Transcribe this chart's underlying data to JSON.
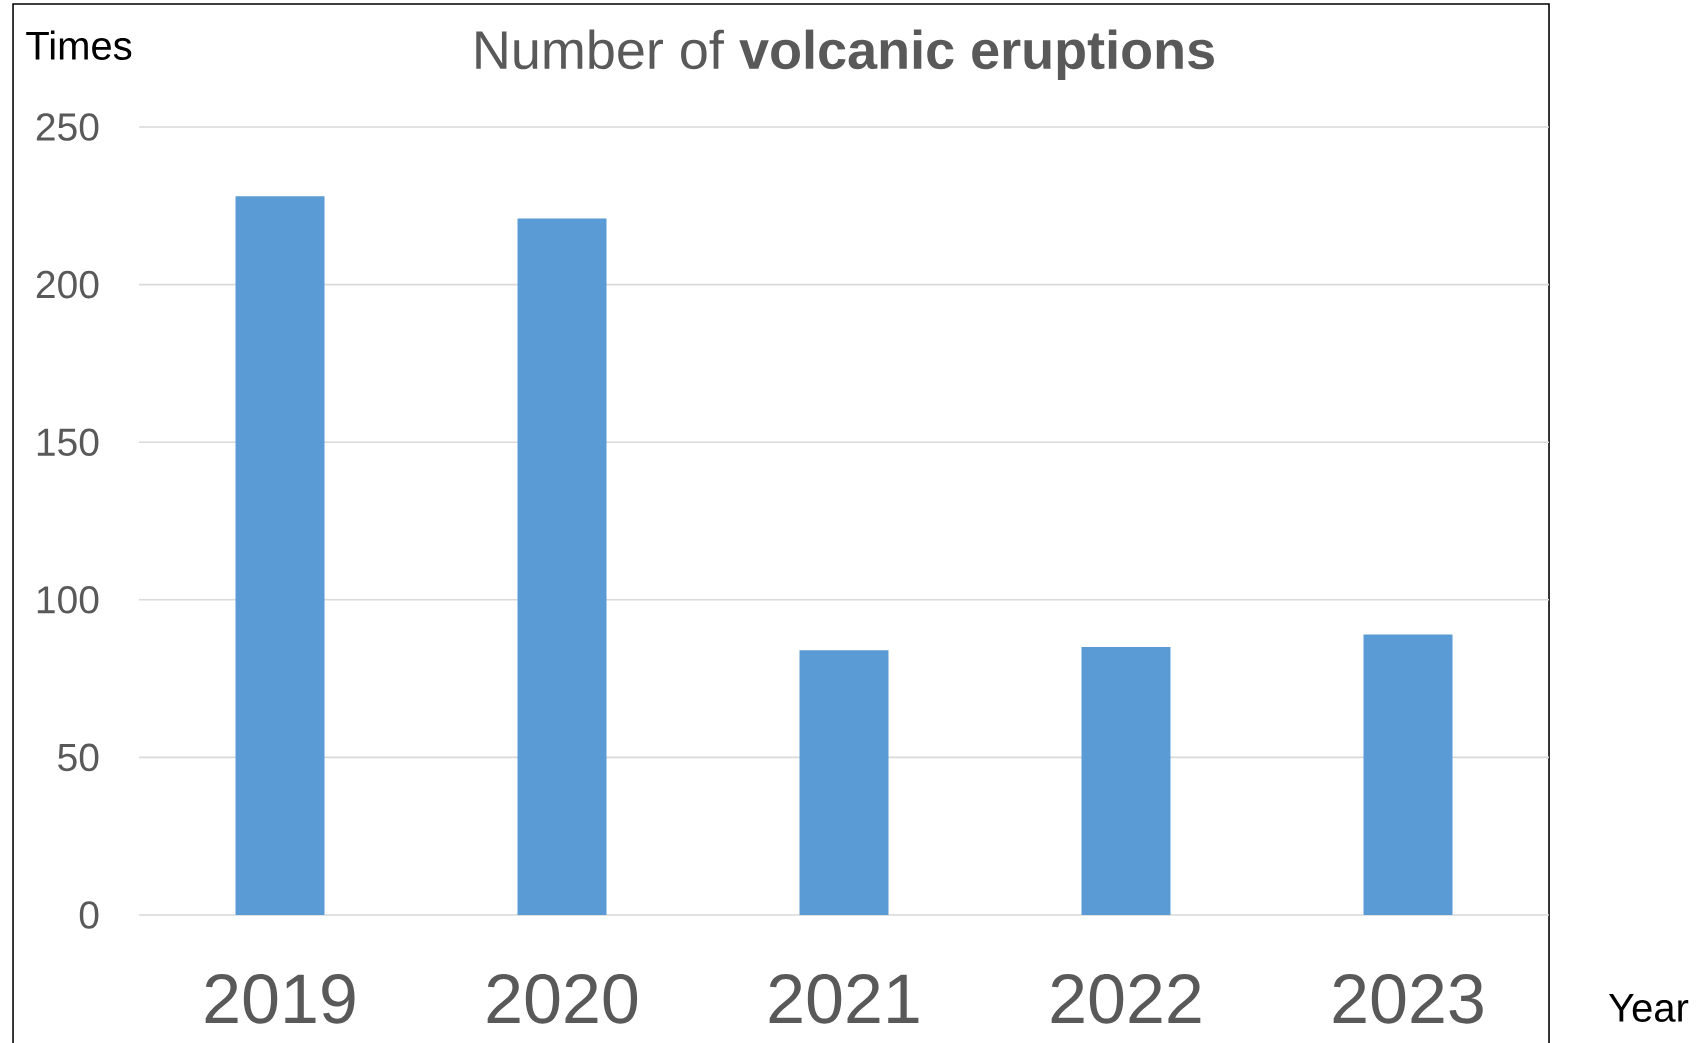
{
  "chart_data": {
    "type": "bar",
    "title": "Number of **volcanic eruptions**",
    "xlabel": "Year",
    "ylabel": "Times",
    "categories": [
      "2019",
      "2020",
      "2021",
      "2022",
      "2023"
    ],
    "values": [
      228,
      221,
      84,
      85,
      89
    ],
    "color": "#5b9bd5",
    "ylim": [
      0,
      250
    ],
    "yticks": [
      0,
      50,
      100,
      150,
      200,
      250
    ],
    "grid": "y"
  }
}
